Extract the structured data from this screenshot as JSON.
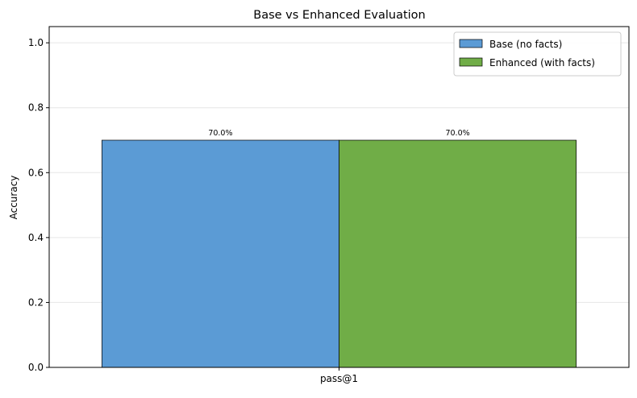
{
  "chart_data": {
    "type": "bar",
    "title": "Base vs Enhanced Evaluation",
    "xlabel": "",
    "ylabel": "Accuracy",
    "categories": [
      "pass@1"
    ],
    "series": [
      {
        "name": "Base (no facts)",
        "values": [
          0.7
        ],
        "labels": [
          "70.0%"
        ],
        "color": "#5b9bd5"
      },
      {
        "name": "Enhanced (with facts)",
        "values": [
          0.7
        ],
        "labels": [
          "70.0%"
        ],
        "color": "#70ad47"
      }
    ],
    "ylim": [
      0,
      1.05
    ],
    "yticks": [
      0.0,
      0.2,
      0.4,
      0.6,
      0.8,
      1.0
    ],
    "ytick_labels": [
      "0.0",
      "0.2",
      "0.4",
      "0.6",
      "0.8",
      "1.0"
    ],
    "grid": "y",
    "legend": "top-right"
  }
}
